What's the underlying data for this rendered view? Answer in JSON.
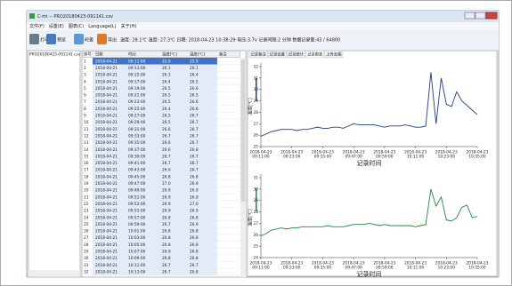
{
  "window": {
    "title": "C-mi -- PRO20180423-091141.csv"
  },
  "menu": [
    "文件(F)",
    "设置(E)",
    "图表(C)",
    "Language(L)",
    "关于(H)"
  ],
  "toolbar": {
    "buttons": [
      "打印",
      "预览",
      "时差",
      "导出"
    ],
    "status": "温度: 28.1℃ 温度: 27.3℃ 日期: 2018-04-23 10:38:29 电压:3.7v 记录间隔:2 分钟 数据记录量:43 / 64800"
  },
  "file_tree": [
    "PRO20180423-091141.csv"
  ],
  "table": {
    "columns": [
      "序号",
      "日期",
      "时间",
      "温度[℃]",
      "温度[℃]",
      "备注"
    ],
    "rows": [
      [
        "1",
        "2018-04-21",
        "09:11:00",
        "25.9",
        "25.9"
      ],
      [
        "2",
        "2018-04-21",
        "09:13:00",
        "26.1",
        "26.1"
      ],
      [
        "3",
        "2018-04-21",
        "09:15:00",
        "26.3",
        "26.4"
      ],
      [
        "4",
        "2018-04-21",
        "09:17:00",
        "26.4",
        "26.5"
      ],
      [
        "5",
        "2018-04-21",
        "09:19:00",
        "26.5",
        "26.6"
      ],
      [
        "6",
        "2018-04-21",
        "09:21:00",
        "26.5",
        "26.5"
      ],
      [
        "7",
        "2018-04-21",
        "09:23:00",
        "26.5",
        "26.6"
      ],
      [
        "8",
        "2018-04-21",
        "09:25:00",
        "26.4",
        "26.6"
      ],
      [
        "9",
        "2018-04-21",
        "09:27:00",
        "26.5",
        "26.7"
      ],
      [
        "10",
        "2018-04-21",
        "09:29:00",
        "26.5",
        "26.7"
      ],
      [
        "11",
        "2018-04-21",
        "09:31:00",
        "26.6",
        "26.7"
      ],
      [
        "12",
        "2018-04-21",
        "09:33:00",
        "26.7",
        "26.7"
      ],
      [
        "13",
        "2018-04-21",
        "09:35:00",
        "26.6",
        "26.7"
      ],
      [
        "14",
        "2018-04-21",
        "09:37:00",
        "26.6",
        "26.8"
      ],
      [
        "15",
        "2018-04-21",
        "09:39:00",
        "26.7",
        "26.7"
      ],
      [
        "16",
        "2018-04-21",
        "09:41:00",
        "26.7",
        "26.7"
      ],
      [
        "17",
        "2018-04-21",
        "09:43:00",
        "26.6",
        "26.7"
      ],
      [
        "18",
        "2018-04-21",
        "09:45:00",
        "26.8",
        "26.8"
      ],
      [
        "19",
        "2018-04-21",
        "09:47:00",
        "27.0",
        "26.9"
      ],
      [
        "20",
        "2018-04-21",
        "09:49:00",
        "26.9",
        "26.9"
      ],
      [
        "21",
        "2018-04-21",
        "09:51:00",
        "26.9",
        "26.9"
      ],
      [
        "22",
        "2018-04-21",
        "09:53:00",
        "26.9",
        "27.0"
      ],
      [
        "23",
        "2018-04-21",
        "09:55:00",
        "26.9",
        "26.9"
      ],
      [
        "24",
        "2018-04-21",
        "09:57:00",
        "26.8",
        "26.8"
      ],
      [
        "25",
        "2018-04-21",
        "09:59:00",
        "26.7",
        "26.9"
      ],
      [
        "26",
        "2018-04-21",
        "10:01:00",
        "26.8",
        "26.8"
      ],
      [
        "27",
        "2018-04-21",
        "10:03:00",
        "26.8",
        "26.8"
      ],
      [
        "28",
        "2018-04-21",
        "10:05:00",
        "26.8",
        "26.8"
      ],
      [
        "29",
        "2018-04-21",
        "10:07:00",
        "26.9",
        "26.8"
      ],
      [
        "30",
        "2018-04-21",
        "10:09:00",
        "26.8",
        "26.8"
      ],
      [
        "31",
        "2018-04-21",
        "10:11:00",
        "26.7",
        "26.7"
      ],
      [
        "32",
        "2018-04-21",
        "10:13:00",
        "26.7",
        "26.8"
      ]
    ]
  },
  "tabs": [
    "记录备注",
    "记录设置",
    "记录统计",
    "记录图表",
    "上传云端"
  ],
  "active_tab": 3,
  "charts": [
    {
      "type": "line",
      "ylabel": "温度[℃]",
      "xlabel": "记录时间",
      "color": "#1f3f7f",
      "ylim": [
        25,
        32
      ],
      "yticks": [
        25,
        26,
        27,
        28,
        29,
        30,
        31,
        32
      ],
      "xticks": [
        [
          "2018-04-23",
          "09:11:00"
        ],
        [
          "2018-04-23",
          "09:23:00"
        ],
        [
          "2018-04-23",
          "09:35:00"
        ],
        [
          "2018-04-23",
          "09:47:00"
        ],
        [
          "2018-04-23",
          "09:59:00"
        ],
        [
          "2018-04-23",
          "10:11:00"
        ],
        [
          "2018-04-23",
          "10:23:00"
        ],
        [
          "2018-04-23",
          "10:35:00"
        ]
      ],
      "values": [
        25.9,
        26.1,
        26.3,
        26.4,
        26.5,
        26.5,
        26.5,
        26.4,
        26.5,
        26.5,
        26.6,
        26.7,
        26.6,
        26.6,
        26.7,
        26.7,
        26.6,
        26.8,
        27.0,
        26.9,
        26.9,
        26.9,
        26.9,
        26.8,
        26.7,
        26.8,
        26.8,
        26.8,
        26.9,
        26.8,
        26.7,
        26.7,
        26.8,
        31.5,
        27.0,
        31.0,
        28.7,
        28.5,
        29.8,
        29.0,
        28.6,
        28.2,
        27.8
      ]
    },
    {
      "type": "line",
      "ylabel": "温度[℃]",
      "xlabel": "记录时间",
      "color": "#1f8a3c",
      "ylim": [
        24,
        31
      ],
      "yticks": [
        24,
        25,
        26,
        27,
        28,
        29,
        30,
        31
      ],
      "xticks": [
        [
          "2018-04-23",
          "09:11:00"
        ],
        [
          "2018-04-23",
          "09:23:00"
        ],
        [
          "2018-04-23",
          "09:35:00"
        ],
        [
          "2018-04-23",
          "09:47:00"
        ],
        [
          "2018-04-23",
          "09:59:00"
        ],
        [
          "2018-04-23",
          "10:11:00"
        ],
        [
          "2018-04-23",
          "10:23:00"
        ],
        [
          "2018-04-23",
          "10:35:00"
        ]
      ],
      "values": [
        25.9,
        26.1,
        26.4,
        26.5,
        26.6,
        26.5,
        26.6,
        26.6,
        26.7,
        26.7,
        26.7,
        26.7,
        26.7,
        26.8,
        26.7,
        26.7,
        26.7,
        26.8,
        26.9,
        26.9,
        26.9,
        27.0,
        26.9,
        26.8,
        26.9,
        26.8,
        26.8,
        26.8,
        26.8,
        26.8,
        26.7,
        26.8,
        26.9,
        30.0,
        28.5,
        29.3,
        27.3,
        27.2,
        27.5,
        28.4,
        28.6,
        27.5,
        27.6
      ]
    }
  ]
}
